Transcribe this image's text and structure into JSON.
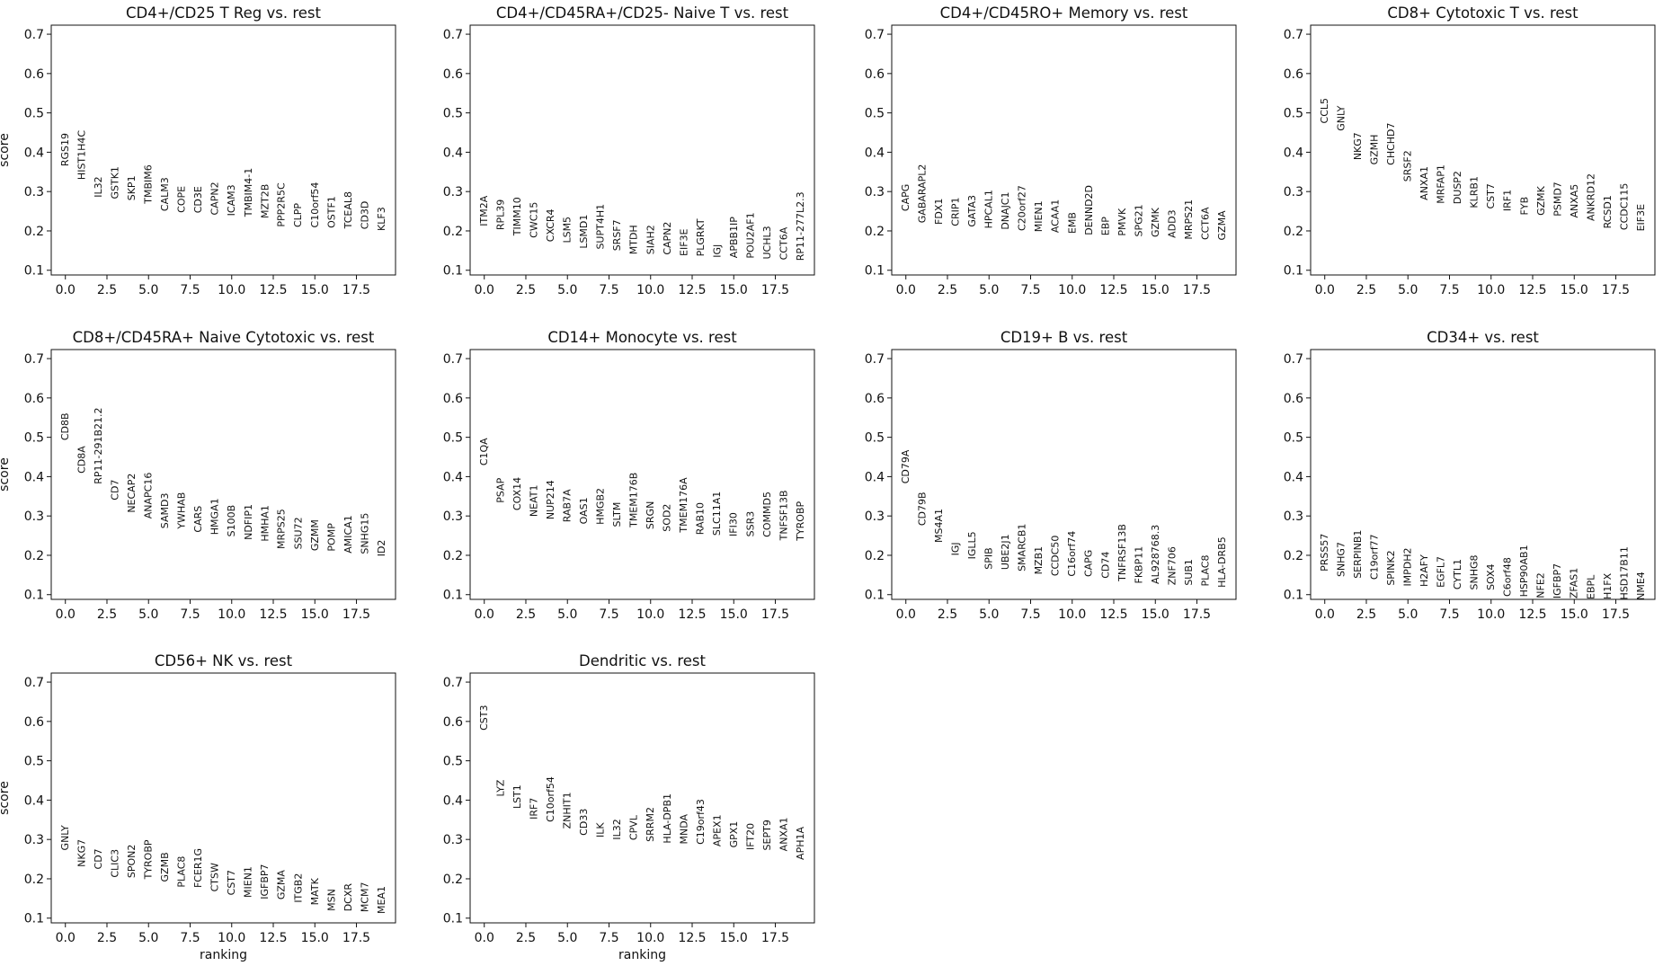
{
  "chart_data": {
    "type": "scatter",
    "layout": "grid of small multiples, 4 columns, gene names drawn as vertical text labels at (rank, score)",
    "shared_axes": {
      "xlabel": "ranking",
      "ylabel": "score",
      "ylim": [
        0.088,
        0.723
      ],
      "xlim": [
        -0.85,
        19.85
      ],
      "yticks": [
        "0.1",
        "0.2",
        "0.3",
        "0.4",
        "0.5",
        "0.6",
        "0.7"
      ],
      "xticks": [
        "0.0",
        "2.5",
        "5.0",
        "7.5",
        "10.0",
        "12.5",
        "15.0",
        "17.5"
      ],
      "grid": false
    },
    "panels": [
      {
        "title": "CD4+/CD25 T Reg vs. rest",
        "genes": [
          "RGS19",
          "HIST1H4C",
          "IL32",
          "GSTK1",
          "SKP1",
          "TMBIM6",
          "CALM3",
          "COPE",
          "CD3E",
          "CAPN2",
          "ICAM3",
          "TMBIM4-1",
          "MZT2B",
          "PPP2R5C",
          "CLPP",
          "C10orf54",
          "OSTF1",
          "TCEAL8",
          "CD3D",
          "KLF3"
        ],
        "scores": [
          0.364,
          0.33,
          0.285,
          0.281,
          0.277,
          0.269,
          0.25,
          0.246,
          0.245,
          0.24,
          0.238,
          0.236,
          0.232,
          0.21,
          0.209,
          0.208,
          0.207,
          0.206,
          0.204,
          0.2
        ]
      },
      {
        "title": "CD4+/CD45RA+/CD25- Naive T vs. rest",
        "genes": [
          "ITM2A",
          "RPL39",
          "TIMM10",
          "CWC15",
          "CXCR4",
          "LSM5",
          "LSMD1",
          "SUPT4H1",
          "SRSF7",
          "MTDH",
          "SIAH2",
          "CAPN2",
          "EIF3E",
          "PLGRKT",
          "IGJ",
          "APBB1IP",
          "POU2AF1",
          "UCHL3",
          "CCT6A",
          "RP11-277L2.3"
        ],
        "scores": [
          0.212,
          0.202,
          0.188,
          0.182,
          0.172,
          0.169,
          0.155,
          0.153,
          0.149,
          0.14,
          0.14,
          0.139,
          0.136,
          0.135,
          0.132,
          0.131,
          0.13,
          0.128,
          0.126,
          0.124
        ]
      },
      {
        "title": "CD4+/CD45RO+ Memory vs. rest",
        "genes": [
          "CAPG",
          "GABARAPL2",
          "FDX1",
          "CRIP1",
          "GATA3",
          "HPCAL1",
          "DNAJC1",
          "C20orf27",
          "MIEN1",
          "ACAA1",
          "EMB",
          "DENND2D",
          "EBP",
          "PMVK",
          "SPG21",
          "GZMK",
          "ADD3",
          "MRPS21",
          "CCT6A",
          "GZMA"
        ],
        "scores": [
          0.25,
          0.22,
          0.216,
          0.212,
          0.21,
          0.206,
          0.203,
          0.2,
          0.197,
          0.195,
          0.193,
          0.189,
          0.188,
          0.187,
          0.185,
          0.184,
          0.182,
          0.178,
          0.177,
          0.176
        ]
      },
      {
        "title": "CD8+ Cytotoxic T vs. rest",
        "genes": [
          "CCL5",
          "GNLY",
          "NKG7",
          "GZMH",
          "CHCHD7",
          "SRSF2",
          "ANXA1",
          "MRFAP1",
          "DUSP2",
          "KLRB1",
          "CST7",
          "IRF1",
          "FYB",
          "GZMK",
          "PSMD7",
          "ANXA5",
          "ANKRD12",
          "RCSD1",
          "CCDC115",
          "EIF3E"
        ],
        "scores": [
          0.473,
          0.454,
          0.38,
          0.368,
          0.367,
          0.325,
          0.278,
          0.269,
          0.268,
          0.258,
          0.256,
          0.25,
          0.24,
          0.239,
          0.237,
          0.233,
          0.225,
          0.206,
          0.202,
          0.199
        ]
      },
      {
        "title": "CD8+/CD45RA+ Naive Cytotoxic vs. rest",
        "genes": [
          "CD8B",
          "CD8A",
          "RP11-291B21.2",
          "CD7",
          "NECAP2",
          "ANAPC16",
          "SAMD3",
          "YWHAB",
          "CARS",
          "HMGA1",
          "S100B",
          "NDFIP1",
          "HMHA1",
          "MRPS25",
          "SSU72",
          "GZMM",
          "POMP",
          "AMICA1",
          "SNHG15",
          "ID2"
        ],
        "scores": [
          0.492,
          0.408,
          0.381,
          0.34,
          0.308,
          0.293,
          0.268,
          0.267,
          0.258,
          0.252,
          0.247,
          0.239,
          0.235,
          0.216,
          0.215,
          0.211,
          0.21,
          0.205,
          0.203,
          0.197
        ]
      },
      {
        "title": "CD14+ Monocyte vs. rest",
        "genes": [
          "C1QA",
          "PSAP",
          "COX14",
          "NEAT1",
          "NUP214",
          "RAB7A",
          "OAS1",
          "HMGB2",
          "SLTM",
          "TMEM176B",
          "SRGN",
          "SOD2",
          "TMEM176A",
          "RAB10",
          "SLC11A1",
          "IFI30",
          "SSR3",
          "COMMD5",
          "TNFSF13B",
          "TYROBP"
        ],
        "scores": [
          0.428,
          0.333,
          0.314,
          0.298,
          0.291,
          0.284,
          0.279,
          0.278,
          0.272,
          0.271,
          0.266,
          0.26,
          0.258,
          0.252,
          0.25,
          0.248,
          0.247,
          0.246,
          0.238,
          0.237
        ]
      },
      {
        "title": "CD19+ B vs. rest",
        "genes": [
          "CD79A",
          "CD79B",
          "MS4A1",
          "IGJ",
          "IGLL5",
          "SPIB",
          "UBE2J1",
          "SMARCB1",
          "MZB1",
          "CCDC50",
          "C16orf74",
          "CAPG",
          "CD74",
          "TNFRSF13B",
          "FKBP11",
          "AL928768.3",
          "ZNF706",
          "SUB1",
          "PLAC8",
          "HLA-DRB5"
        ],
        "scores": [
          0.382,
          0.275,
          0.232,
          0.199,
          0.19,
          0.164,
          0.163,
          0.159,
          0.151,
          0.147,
          0.146,
          0.145,
          0.141,
          0.134,
          0.128,
          0.127,
          0.124,
          0.123,
          0.121,
          0.118
        ]
      },
      {
        "title": "CD34+ vs. rest",
        "genes": [
          "PRSS57",
          "SNHG7",
          "SERPINB1",
          "C19orf77",
          "SPINK2",
          "IMPDH2",
          "H2AFY",
          "EGFL7",
          "CYTL1",
          "SNHG8",
          "SOX4",
          "C6orf48",
          "HSP90AB1",
          "NFE2",
          "IGFBP7",
          "ZFAS1",
          "EBPL",
          "H1FX",
          "HSD17B11",
          "NME4"
        ],
        "scores": [
          0.159,
          0.145,
          0.141,
          0.138,
          0.123,
          0.121,
          0.12,
          0.118,
          0.113,
          0.112,
          0.111,
          0.095,
          0.094,
          0.091,
          0.09,
          0.09,
          0.088,
          0.088,
          0.087,
          0.086
        ]
      },
      {
        "title": "CD56+ NK vs. rest",
        "genes": [
          "GNLY",
          "NKG7",
          "CD7",
          "CLIC3",
          "SPON2",
          "TYROBP",
          "GZMB",
          "PLAC8",
          "FCER1G",
          "CTSW",
          "CST7",
          "MIEN1",
          "IGFBP7",
          "GZMA",
          "ITGB2",
          "MATK",
          "MSN",
          "DCXR",
          "MCM7",
          "MEA1"
        ],
        "scores": [
          0.272,
          0.23,
          0.224,
          0.203,
          0.202,
          0.199,
          0.192,
          0.178,
          0.177,
          0.167,
          0.158,
          0.152,
          0.148,
          0.147,
          0.139,
          0.133,
          0.118,
          0.117,
          0.115,
          0.111
        ]
      },
      {
        "title": "Dendritic vs. rest",
        "genes": [
          "CST3",
          "LYZ",
          "LST1",
          "IRF7",
          "C10orf54",
          "ZNHIT1",
          "CD33",
          "ILK",
          "IL32",
          "CPVL",
          "SRRM2",
          "HLA-DPB1",
          "MNDA",
          "C19orf43",
          "APEX1",
          "GPX1",
          "IFT20",
          "SEPT9",
          "ANXA1",
          "APH1A"
        ],
        "scores": [
          0.577,
          0.409,
          0.378,
          0.351,
          0.344,
          0.327,
          0.31,
          0.305,
          0.299,
          0.298,
          0.294,
          0.29,
          0.288,
          0.287,
          0.282,
          0.279,
          0.273,
          0.272,
          0.27,
          0.248
        ]
      }
    ]
  }
}
